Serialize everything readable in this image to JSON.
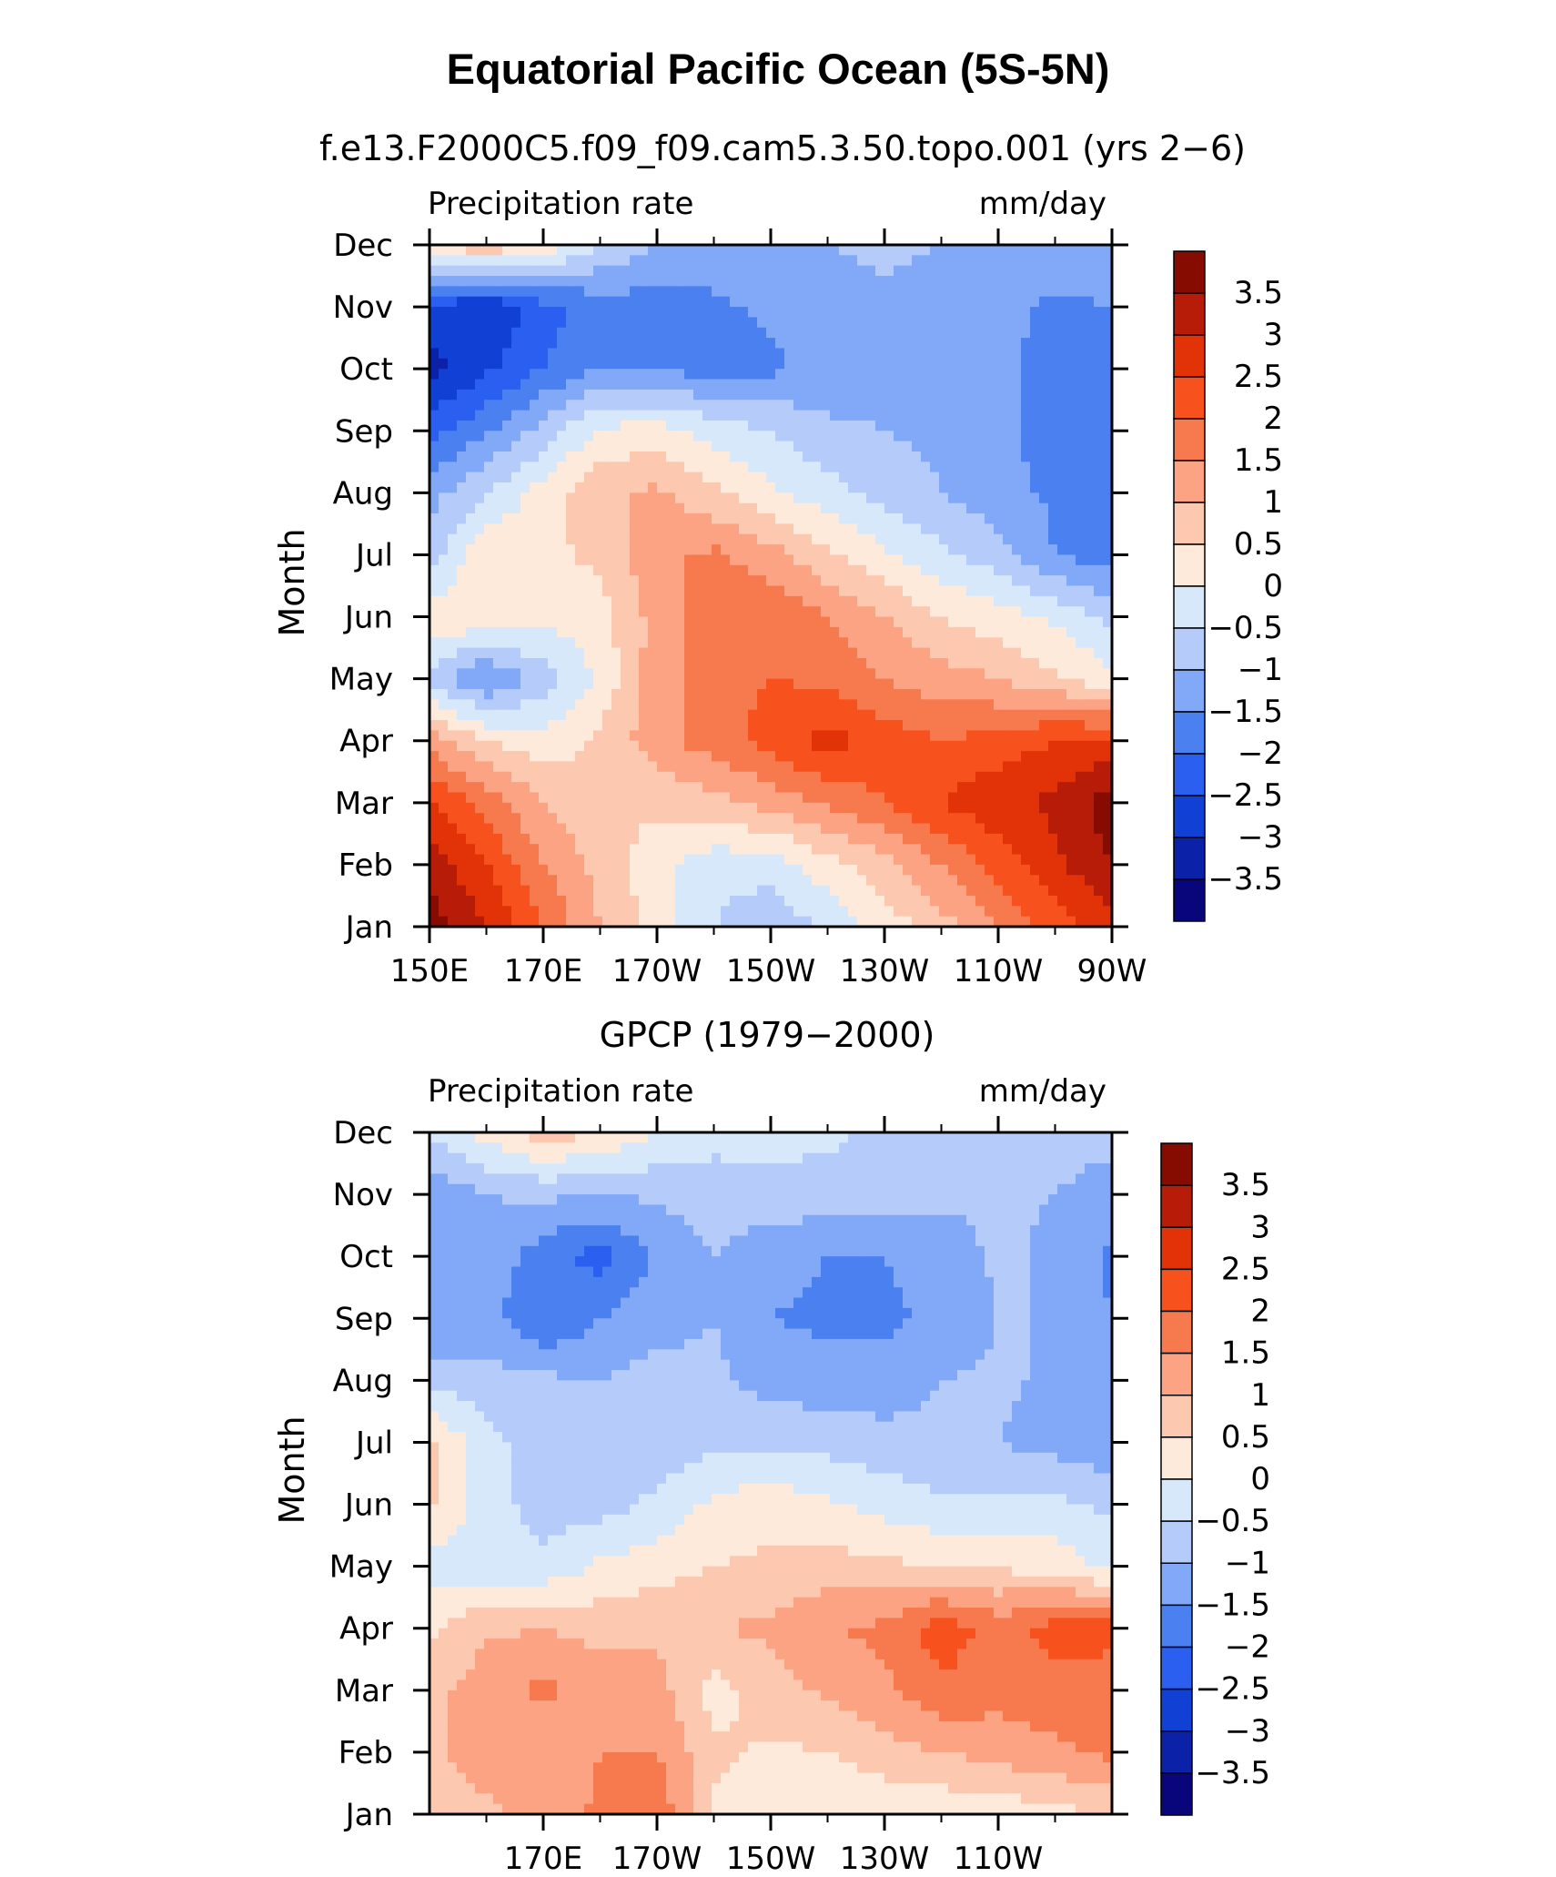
{
  "title": "Equatorial Pacific Ocean (5S-5N)",
  "colors": [
    "#08067a",
    "#0b22a8",
    "#1140d4",
    "#2a5ff0",
    "#4a80f0",
    "#82a8f8",
    "#b5cbfa",
    "#d8e8fb",
    "#fdeadb",
    "#fdc8b0",
    "#fca384",
    "#f77a4e",
    "#f7521e",
    "#e23308",
    "#b71c08",
    "#860c02"
  ],
  "chart_data": [
    {
      "type": "heatmap",
      "title": "f.e13.F2000C5.f09_f09.cam5.3.50.topo.001 (yrs 2-6)",
      "variable_label": "Precipitation rate",
      "units_label": "mm/day",
      "ylabel": "Month",
      "xlabel": "",
      "x_ticks": [
        "150E",
        "170E",
        "170W",
        "150W",
        "130W",
        "110W",
        "90W"
      ],
      "y_ticks": [
        "Jan",
        "Feb",
        "Mar",
        "Apr",
        "May",
        "Jun",
        "Jul",
        "Aug",
        "Sep",
        "Oct",
        "Nov",
        "Dec"
      ],
      "colorbar_labels": [
        "3.5",
        "3",
        "2.5",
        "2",
        "1.5",
        "1",
        "0.5",
        "0",
        "-0.5",
        "-1",
        "-1.5",
        "-2",
        "-2.5",
        "-3",
        "-3.5"
      ],
      "levels": [
        -3.5,
        -3,
        -2.5,
        -2,
        -1.5,
        -1,
        -0.5,
        0,
        0.5,
        1,
        1.5,
        2,
        2.5,
        3,
        3.5
      ],
      "x": [
        150,
        160,
        170,
        180,
        190,
        200,
        210,
        220,
        230,
        240,
        250,
        260,
        270
      ],
      "values": [
        [
          3.8,
          3.0,
          2.0,
          1.0,
          0.3,
          -0.5,
          -0.9,
          -0.4,
          0.2,
          0.8,
          1.5,
          2.2,
          2.8
        ],
        [
          3.3,
          2.5,
          1.5,
          0.8,
          0.2,
          -0.3,
          -0.3,
          0.3,
          0.8,
          1.5,
          2.2,
          2.9,
          3.5
        ],
        [
          2.5,
          1.8,
          1.0,
          0.6,
          0.6,
          0.8,
          1.2,
          1.6,
          2.0,
          2.5,
          2.9,
          3.1,
          3.8
        ],
        [
          1.3,
          0.5,
          0.2,
          0.6,
          1.3,
          1.8,
          2.2,
          2.7,
          2.3,
          2.0,
          2.2,
          2.5,
          2.6
        ],
        [
          -0.7,
          -1.6,
          -0.8,
          0.1,
          1.3,
          1.8,
          2.0,
          1.9,
          1.5,
          1.2,
          1.0,
          0.6,
          0.1
        ],
        [
          0.3,
          0.5,
          0.2,
          0.3,
          1.2,
          1.8,
          1.9,
          1.5,
          1.0,
          0.5,
          0.2,
          -0.1,
          -0.6
        ],
        [
          -0.8,
          0.4,
          0.4,
          0.6,
          1.4,
          1.6,
          1.2,
          0.6,
          0.1,
          -0.4,
          -0.8,
          -1.5,
          -1.8
        ],
        [
          -1.2,
          -0.5,
          0.2,
          0.9,
          1.1,
          0.6,
          0.1,
          -0.3,
          -0.7,
          -1.0,
          -1.3,
          -1.6,
          -1.8
        ],
        [
          -2.2,
          -1.6,
          -0.8,
          0.1,
          0.2,
          -0.2,
          -0.5,
          -0.9,
          -1.0,
          -1.1,
          -1.4,
          -1.7,
          -1.8
        ],
        [
          -3.2,
          -2.6,
          -2.0,
          -1.5,
          -1.5,
          -1.8,
          -1.6,
          -1.3,
          -1.2,
          -1.3,
          -1.4,
          -1.7,
          -1.8
        ],
        [
          -2.6,
          -3.0,
          -2.2,
          -1.8,
          -1.7,
          -1.6,
          -1.4,
          -1.2,
          -1.1,
          -1.2,
          -1.3,
          -1.6,
          -1.5
        ],
        [
          0.5,
          1.0,
          0.4,
          -0.5,
          -1.0,
          -1.2,
          -1.1,
          -1.0,
          -0.9,
          -1.0,
          -1.1,
          -1.2,
          -1.0
        ]
      ]
    },
    {
      "type": "heatmap",
      "title": "GPCP (1979-2000)",
      "variable_label": "Precipitation rate",
      "units_label": "mm/day",
      "ylabel": "Month",
      "xlabel": "",
      "x_ticks": [
        "170E",
        "170W",
        "150W",
        "130W",
        "110W"
      ],
      "y_ticks": [
        "Jan",
        "Feb",
        "Mar",
        "Apr",
        "May",
        "Jun",
        "Jul",
        "Aug",
        "Sep",
        "Oct",
        "Nov",
        "Dec"
      ],
      "colorbar_labels": [
        "3.5",
        "3",
        "2.5",
        "2",
        "1.5",
        "1",
        "0.5",
        "0",
        "-0.5",
        "-1",
        "-1.5",
        "-2",
        "-2.5",
        "-3",
        "-3.5"
      ],
      "levels": [
        -3.5,
        -3,
        -2.5,
        -2,
        -1.5,
        -1,
        -0.5,
        0,
        0.5,
        1,
        1.5,
        2,
        2.5,
        3,
        3.5
      ],
      "x": [
        150,
        160,
        170,
        180,
        190,
        200,
        210,
        220,
        230,
        240,
        250,
        260,
        270
      ],
      "values": [
        [
          0.8,
          0.9,
          1.2,
          1.6,
          1.9,
          0.4,
          0.2,
          0.1,
          0.1,
          0.1,
          0.2,
          0.3,
          0.6
        ],
        [
          0.9,
          1.2,
          1.1,
          1.5,
          1.5,
          0.6,
          0.4,
          0.5,
          0.8,
          1.0,
          1.2,
          1.4,
          1.6
        ],
        [
          0.8,
          1.3,
          1.6,
          1.3,
          1.2,
          0.3,
          0.8,
          1.1,
          1.4,
          1.9,
          1.7,
          1.8,
          1.7
        ],
        [
          0.4,
          0.9,
          1.0,
          0.8,
          0.9,
          1.0,
          1.1,
          1.5,
          1.6,
          2.3,
          1.8,
          2.2,
          2.2
        ],
        [
          -0.2,
          -0.3,
          -0.4,
          0.1,
          0.3,
          0.5,
          0.6,
          0.7,
          0.6,
          0.5,
          0.4,
          0.3,
          -0.2
        ],
        [
          0.6,
          -0.3,
          -0.7,
          -0.7,
          -0.4,
          0.1,
          0.3,
          0.1,
          -0.2,
          -0.4,
          -0.4,
          -0.4,
          -0.6
        ],
        [
          0.6,
          -0.3,
          -0.8,
          -0.8,
          -0.8,
          -0.6,
          -0.6,
          -0.7,
          -0.8,
          -0.9,
          -1.0,
          -1.2,
          -1.4
        ],
        [
          -0.7,
          -0.8,
          -0.9,
          -1.0,
          -0.8,
          -0.9,
          -1.2,
          -1.3,
          -1.3,
          -1.0,
          -0.9,
          -1.1,
          -1.3
        ],
        [
          -1.5,
          -1.3,
          -2.0,
          -1.5,
          -1.2,
          -1.0,
          -1.5,
          -1.6,
          -1.6,
          -1.4,
          -1.0,
          -1.0,
          -1.5
        ],
        [
          -1.3,
          -1.1,
          -1.8,
          -2.2,
          -1.4,
          -1.0,
          -1.3,
          -1.5,
          -1.5,
          -1.3,
          -0.9,
          -1.1,
          -1.6
        ],
        [
          -1.4,
          -1.0,
          -0.9,
          -1.0,
          -0.9,
          -0.8,
          -0.7,
          -0.7,
          -0.8,
          -0.9,
          -0.9,
          -1.0,
          -1.3
        ],
        [
          -0.4,
          0.2,
          0.8,
          0.5,
          0.0,
          -0.3,
          -0.3,
          -0.4,
          -0.6,
          -0.6,
          -0.6,
          -0.7,
          -0.8
        ]
      ]
    }
  ]
}
